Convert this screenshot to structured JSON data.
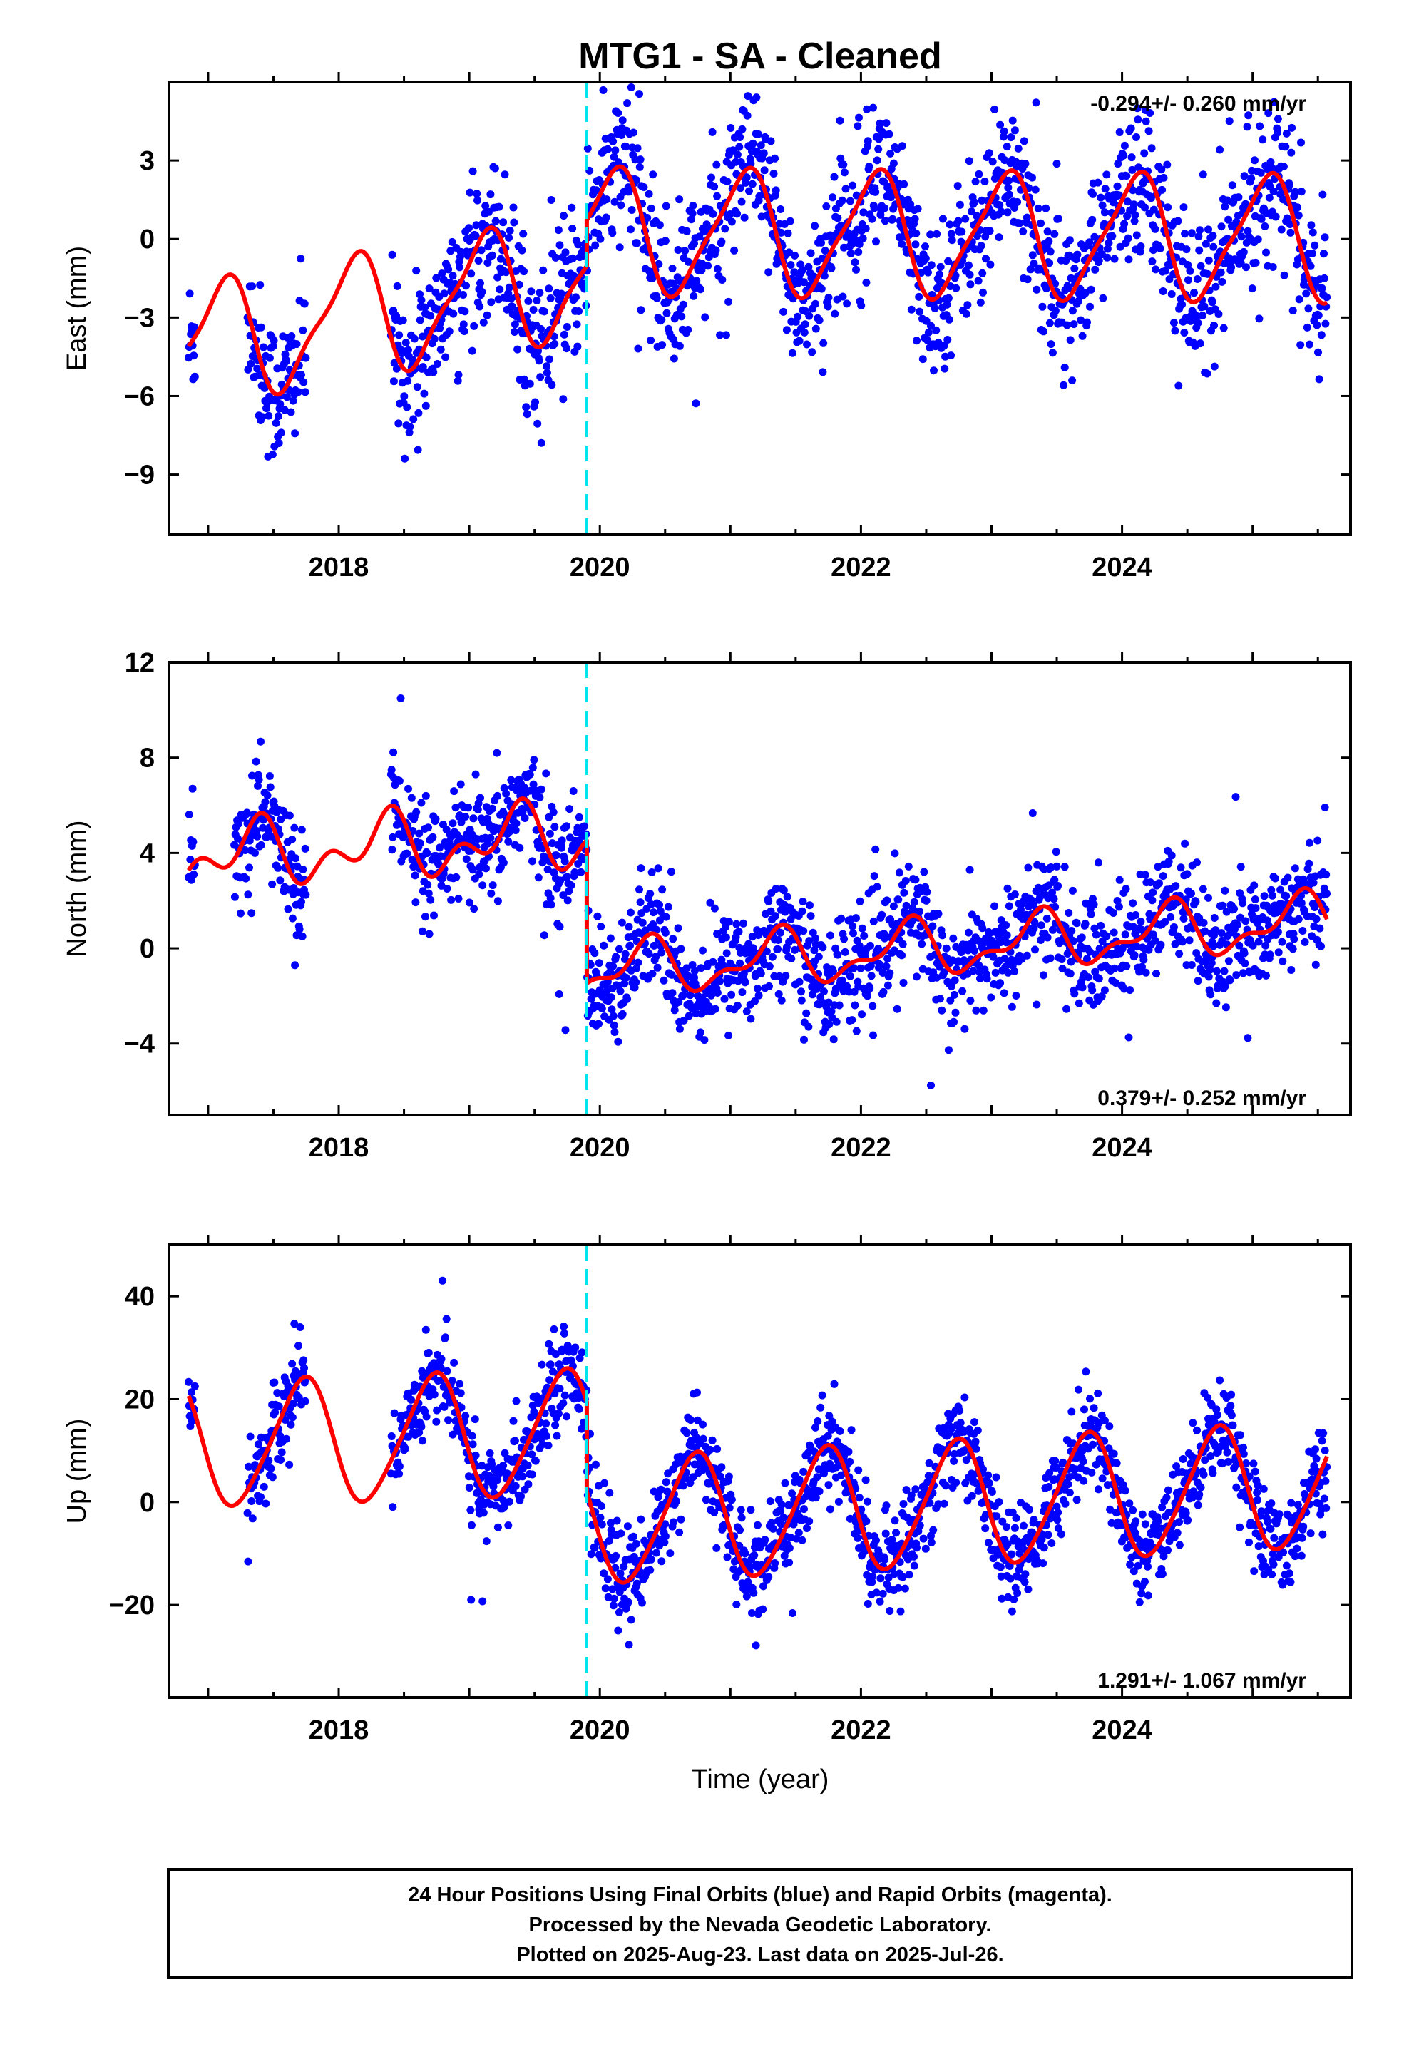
{
  "title": "MTG1  - SA - Cleaned",
  "xlabel": "Time (year)",
  "footer": {
    "line1": "24 Hour Positions Using Final Orbits (blue) and Rapid Orbits (magenta).",
    "line2": "Processed by the Nevada Geodetic Laboratory.",
    "line3": "Plotted on 2025-Aug-23. Last data on 2025-Jul-26."
  },
  "colors": {
    "points": "#0000ff",
    "model": "#ff0000",
    "break_line": "#00e5ee",
    "frame": "#000000"
  },
  "chart_data": [
    {
      "type": "scatter",
      "component": "east",
      "ylabel": "East (mm)",
      "rate_text": "-0.294+/- 0.260 mm/yr",
      "rate_position": "top-right",
      "xlim": [
        2016.7,
        2025.75
      ],
      "ylim": [
        -11.3,
        6.0
      ],
      "xticks": [
        2018,
        2020,
        2022,
        2024
      ],
      "yticks": [
        -9,
        -6,
        -3,
        0,
        3
      ],
      "equipment_change": 2019.9,
      "data_span": [
        2016.85,
        2025.57
      ],
      "gaps": [
        [
          2016.9,
          2017.3
        ],
        [
          2017.75,
          2018.4
        ]
      ],
      "noise_sd": 1.4,
      "model": {
        "segments": [
          {
            "x0": 2016.85,
            "x1": 2019.9,
            "offset": -4.1,
            "slope": 0.9,
            "amp1": 2.2,
            "phase1": -0.15,
            "amp2": 0.6,
            "phase2": 0.1
          },
          {
            "x0": 2019.9,
            "x1": 2025.57,
            "offset": 0.3,
            "slope": -0.05,
            "amp1": 2.3,
            "phase1": -0.15,
            "amp2": 0.5,
            "phase2": 0.1
          }
        ]
      }
    },
    {
      "type": "scatter",
      "component": "north",
      "ylabel": "North (mm)",
      "rate_text": "0.379+/- 0.252 mm/yr",
      "rate_position": "bottom-right",
      "xlim": [
        2016.7,
        2025.75
      ],
      "ylim": [
        -7.0,
        12.0
      ],
      "xticks": [
        2018,
        2020,
        2022,
        2024
      ],
      "yticks": [
        -4,
        0,
        4,
        8,
        12
      ],
      "equipment_change": 2019.9,
      "data_span": [
        2016.85,
        2025.57
      ],
      "gaps": [
        [
          2016.9,
          2017.2
        ],
        [
          2017.75,
          2018.4
        ]
      ],
      "noise_sd": 1.2,
      "model": {
        "segments": [
          {
            "x0": 2016.85,
            "x1": 2019.9,
            "offset": 3.8,
            "slope": 0.3,
            "amp1": 1.0,
            "phase1": 0.1,
            "amp2": 0.8,
            "phase2": 0.3
          },
          {
            "x0": 2019.9,
            "x1": 2025.57,
            "offset": -1.0,
            "slope": 0.38,
            "amp1": 1.0,
            "phase1": 0.1,
            "amp2": 0.5,
            "phase2": 0.3
          }
        ]
      }
    },
    {
      "type": "scatter",
      "component": "up",
      "ylabel": "Up (mm)",
      "rate_text": "1.291+/- 1.067 mm/yr",
      "rate_position": "bottom-right",
      "xlim": [
        2016.7,
        2025.75
      ],
      "ylim": [
        -38.0,
        50.0
      ],
      "xticks": [
        2018,
        2020,
        2022,
        2024
      ],
      "yticks": [
        -20,
        0,
        20,
        40
      ],
      "equipment_change": 2019.9,
      "data_span": [
        2016.85,
        2025.57
      ],
      "gaps": [
        [
          2016.9,
          2017.3
        ],
        [
          2017.75,
          2018.4
        ]
      ],
      "noise_sd": 4.5,
      "model": {
        "segments": [
          {
            "x0": 2016.85,
            "x1": 2019.9,
            "offset": 11.0,
            "slope": 0.8,
            "amp1": 12.0,
            "phase1": 0.47,
            "amp2": 1.5,
            "phase2": 0.2
          },
          {
            "x0": 2019.9,
            "x1": 2025.57,
            "offset": -4.0,
            "slope": 1.29,
            "amp1": 12.0,
            "phase1": 0.47,
            "amp2": 1.5,
            "phase2": 0.2
          }
        ]
      }
    }
  ]
}
